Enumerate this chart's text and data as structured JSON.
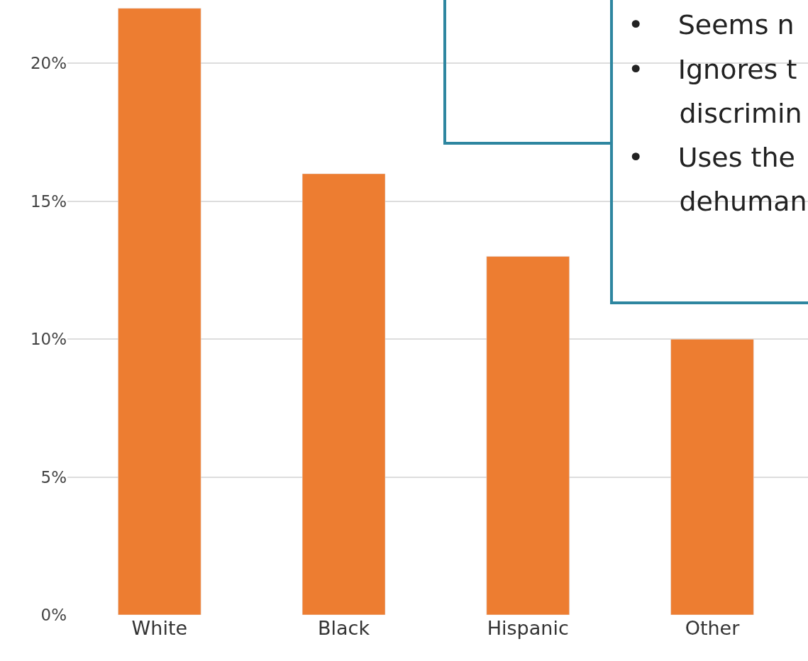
{
  "chart_data": {
    "type": "bar",
    "categories": [
      "White",
      "Black",
      "Hispanic",
      "Other"
    ],
    "values": [
      22,
      16,
      13,
      10
    ],
    "color": "#ed7d31",
    "ylim": [
      0,
      22.3
    ],
    "yticks": [
      {
        "value": 0,
        "label": "0%"
      },
      {
        "value": 5,
        "label": "5%"
      },
      {
        "value": 10,
        "label": "10%"
      },
      {
        "value": 15,
        "label": "15%"
      },
      {
        "value": 20,
        "label": "20%"
      }
    ],
    "grid": "y",
    "annotations": [
      "•    Seems n",
      "•    Ignores t",
      "      discrimin",
      "•    Uses the",
      "      dehuman"
    ]
  }
}
